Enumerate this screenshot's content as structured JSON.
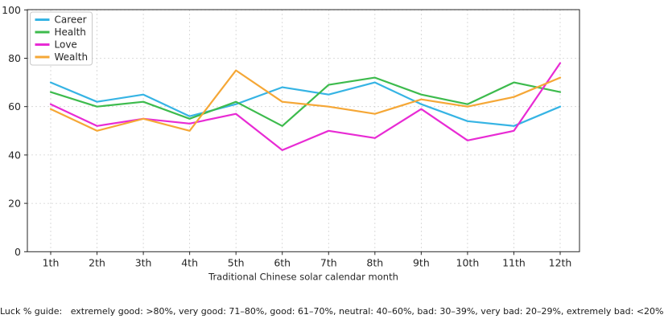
{
  "chart_data": {
    "type": "line",
    "categories": [
      "1th",
      "2th",
      "3th",
      "4th",
      "5th",
      "6th",
      "7th",
      "8th",
      "9th",
      "10th",
      "11th",
      "12th"
    ],
    "series": [
      {
        "name": "Career",
        "color": "#36b4e4",
        "values": [
          70,
          62,
          65,
          56,
          61,
          68,
          65,
          70,
          61,
          54,
          52,
          60
        ]
      },
      {
        "name": "Health",
        "color": "#3dbb4d",
        "values": [
          66,
          60,
          62,
          55,
          62,
          52,
          69,
          72,
          65,
          61,
          70,
          66
        ]
      },
      {
        "name": "Love",
        "color": "#e82bd4",
        "values": [
          61,
          52,
          55,
          53,
          57,
          42,
          50,
          47,
          59,
          46,
          50,
          78
        ]
      },
      {
        "name": "Wealth",
        "color": "#f5a736",
        "values": [
          59,
          50,
          55,
          50,
          75,
          62,
          60,
          57,
          63,
          60,
          64,
          72
        ]
      }
    ],
    "title": "",
    "xlabel": "Traditional Chinese solar calendar month",
    "ylabel": "",
    "ylim": [
      0,
      100
    ],
    "yticks": [
      0,
      20,
      40,
      60,
      80,
      100
    ],
    "grid": true,
    "grid_style": "dashed",
    "legend_position": "top-left"
  },
  "colors": {
    "grid": "#d2d2d2",
    "spine": "#262626",
    "tick_label": "#262626",
    "legend_border": "#c9c9c9"
  },
  "footer": {
    "note": "Luck % guide:   extremely good: >80%, very good: 71–80%, good: 61–70%, neutral: 40–60%, bad: 30–39%, very bad: 20–29%, extremely bad: <20%"
  }
}
